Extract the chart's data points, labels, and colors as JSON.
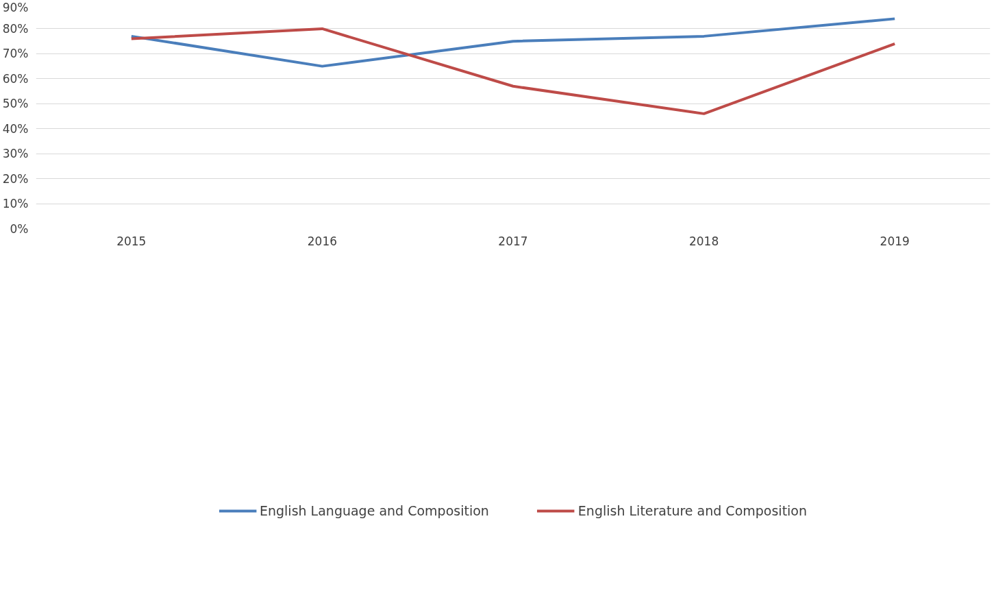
{
  "chart_data": {
    "type": "line",
    "categories": [
      "2015",
      "2016",
      "2017",
      "2018",
      "2019"
    ],
    "series": [
      {
        "name": "English Language and Composition",
        "color": "#4a7ebb",
        "values": [
          77,
          65,
          75,
          77,
          84
        ]
      },
      {
        "name": "English Literature and Composition",
        "color": "#be4b48",
        "values": [
          76,
          80,
          57,
          46,
          74
        ]
      }
    ],
    "ylim": [
      0,
      90
    ],
    "yticks": [
      {
        "value": 0,
        "label": "0%"
      },
      {
        "value": 10,
        "label": "10%"
      },
      {
        "value": 20,
        "label": "20%"
      },
      {
        "value": 30,
        "label": "30%"
      },
      {
        "value": 40,
        "label": "40%"
      },
      {
        "value": 50,
        "label": "50%"
      },
      {
        "value": 60,
        "label": "60%"
      },
      {
        "value": 70,
        "label": "70%"
      },
      {
        "value": 80,
        "label": "80%"
      },
      {
        "value": 90,
        "label": "90%"
      }
    ],
    "grid": "y",
    "legend": "bottom",
    "marker": "none",
    "line_style": "solid"
  }
}
